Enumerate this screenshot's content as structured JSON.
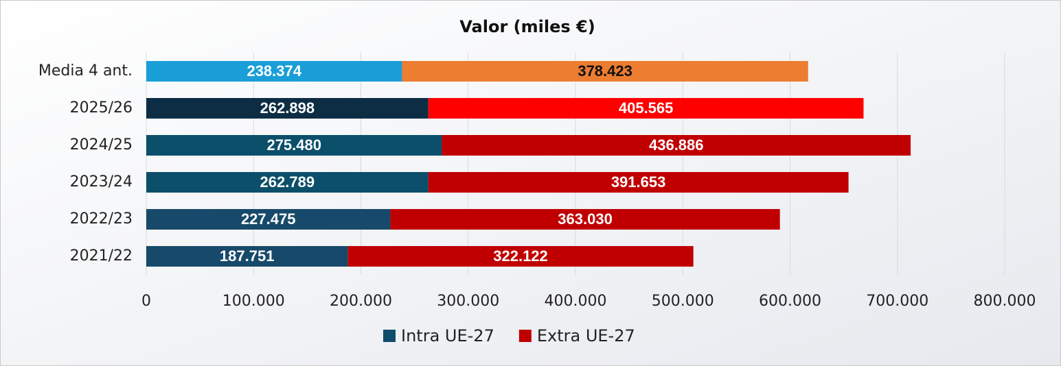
{
  "chart_data": {
    "type": "stacked-barh",
    "title": "Valor (miles €)",
    "categories": [
      "Media 4 ant.",
      "2025/26",
      "2024/25",
      "2023/24",
      "2022/23",
      "2021/22"
    ],
    "series": [
      {
        "name": "Intra UE-27",
        "color": "#0f4d6a",
        "colors": [
          "#1a9ed8",
          "#0d2d45",
          "#0b4f6a",
          "#0b4f6a",
          "#174a6a",
          "#174a6a"
        ],
        "values": [
          238374,
          262898,
          275480,
          262789,
          227475,
          187751
        ],
        "value_labels": [
          "238.374",
          "262.898",
          "275.480",
          "262.789",
          "227.475",
          "187.751"
        ]
      },
      {
        "name": "Extra UE-27",
        "color": "#c00000",
        "colors": [
          "#ed7d31",
          "#ff0000",
          "#c00000",
          "#c00000",
          "#c00000",
          "#c00000"
        ],
        "values": [
          378423,
          405565,
          436886,
          391653,
          363030,
          322122
        ],
        "value_labels": [
          "378.423",
          "405.565",
          "436.886",
          "391.653",
          "363.030",
          "322.122"
        ]
      }
    ],
    "xlim": [
      0,
      800000
    ],
    "xticks": [
      0,
      {
        "value": 100000,
        "label": "100.000"
      },
      {
        "value": 200000,
        "label": "200.000"
      },
      {
        "value": 300000,
        "label": "300.000"
      },
      {
        "value": 400000,
        "label": "400.000"
      },
      {
        "value": 500000,
        "label": "500.000"
      },
      {
        "value": 600000,
        "label": "600.000"
      },
      {
        "value": 700000,
        "label": "700.000"
      },
      {
        "value": 800000,
        "label": "800.000"
      }
    ],
    "grid": true,
    "legend": "bottom"
  }
}
